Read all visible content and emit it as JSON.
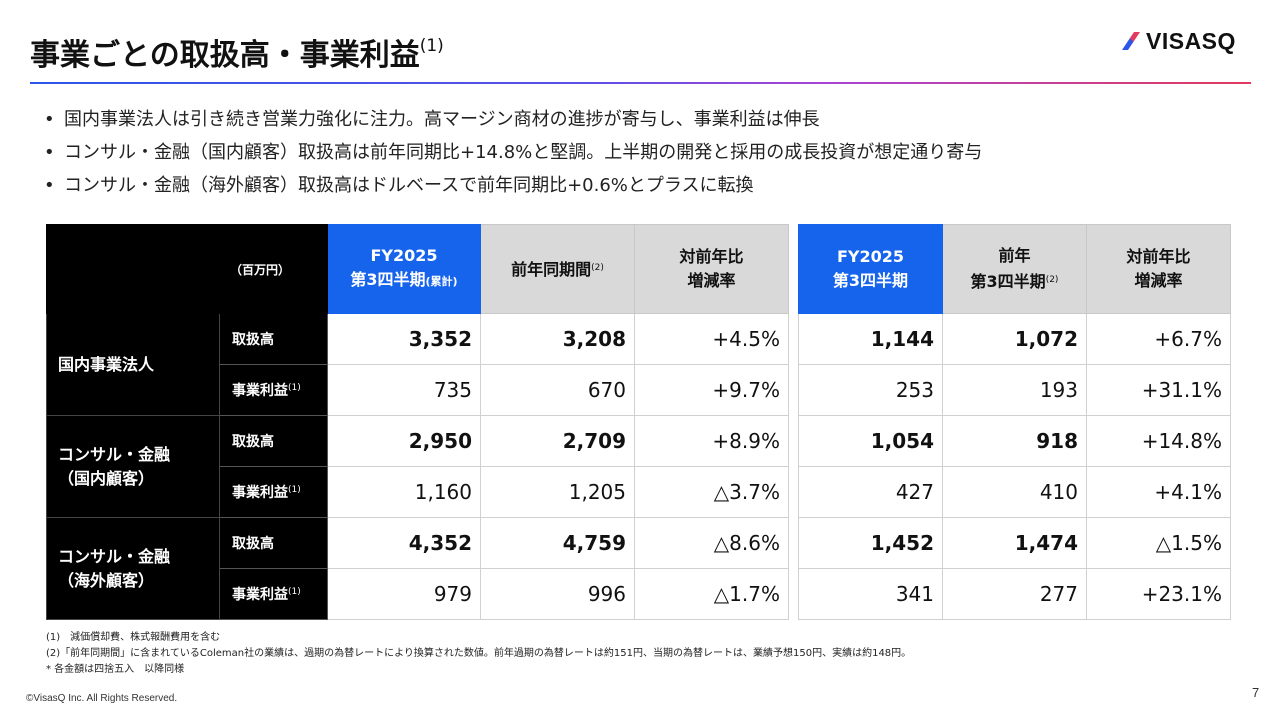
{
  "header": {
    "title": "事業ごとの取扱高・事業利益",
    "title_note": "(1)",
    "logo_text": "VISASQ",
    "colors": {
      "rule_start": "#2d56e8",
      "rule_end": "#e23a5c",
      "current_period": "#1764ec"
    }
  },
  "bullets": [
    "国内事業法人は引き続き営業力強化に注力。高マージン商材の進捗が寄与し、事業利益は伸長",
    "コンサル・金融（国内顧客）取扱高は前年同期比+14.8%と堅調。上半期の開発と採用の成長投資が想定通り寄与",
    "コンサル・金融（海外顧客）取扱高はドルベースで前年同期比+0.6%とプラスに転換"
  ],
  "table": {
    "unit": "（百万円）",
    "cumulative": {
      "current_line1": "FY2025",
      "current_line2": "第3四半期",
      "current_suffix": "(累計)",
      "prior": "前年同期間",
      "prior_note": "(2)",
      "change_line1": "対前年比",
      "change_line2": "増減率"
    },
    "quarter": {
      "current_line1": "FY2025",
      "current_line2": "第3四半期",
      "prior_line1": "前年",
      "prior_line2": "第3四半期",
      "prior_note": "(2)",
      "change_line1": "対前年比",
      "change_line2": "増減率"
    },
    "segments": [
      {
        "name_line1": "国内事業法人",
        "name_line2": ""
      },
      {
        "name_line1": "コンサル・金融",
        "name_line2": "（国内顧客）"
      },
      {
        "name_line1": "コンサル・金融",
        "name_line2": "（海外顧客）"
      }
    ],
    "metrics": {
      "gmv": "取扱高",
      "profit": "事業利益",
      "profit_note": "(1)"
    },
    "rows": [
      {
        "c_cur": "3,352",
        "c_prior": "3,208",
        "c_chg": "+4.5%",
        "q_cur": "1,144",
        "q_prior": "1,072",
        "q_chg": "+6.7%"
      },
      {
        "c_cur": "735",
        "c_prior": "670",
        "c_chg": "+9.7%",
        "q_cur": "253",
        "q_prior": "193",
        "q_chg": "+31.1%"
      },
      {
        "c_cur": "2,950",
        "c_prior": "2,709",
        "c_chg": "+8.9%",
        "q_cur": "1,054",
        "q_prior": "918",
        "q_chg": "+14.8%"
      },
      {
        "c_cur": "1,160",
        "c_prior": "1,205",
        "c_chg": "△3.7%",
        "q_cur": "427",
        "q_prior": "410",
        "q_chg": "+4.1%"
      },
      {
        "c_cur": "4,352",
        "c_prior": "4,759",
        "c_chg": "△8.6%",
        "q_cur": "1,452",
        "q_prior": "1,474",
        "q_chg": "△1.5%"
      },
      {
        "c_cur": "979",
        "c_prior": "996",
        "c_chg": "△1.7%",
        "q_cur": "341",
        "q_prior": "277",
        "q_chg": "+23.1%"
      }
    ]
  },
  "footnotes": [
    "(1)　減価償却費、株式報酬費用を含む",
    "(2)「前年同期間」に含まれているColeman社の業績は、過期の為替レートにより換算された数値。前年過期の為替レートは約151円、当期の為替レートは、業績予想150円、実績は約148円。",
    "* 各金額は四捨五入　以降同様"
  ],
  "footer": {
    "copyright": "©VisasQ Inc. All Rights Reserved.",
    "page": "7"
  }
}
